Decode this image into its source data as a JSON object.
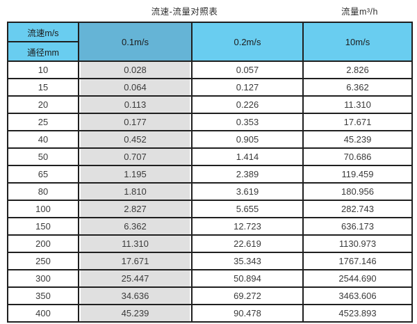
{
  "titles": {
    "table_title": "流速-流量对照表",
    "unit_label": "流量m³/h"
  },
  "table": {
    "corner_top": "流速m/s",
    "corner_bottom": "通径mm",
    "column_headers": [
      "0.1m/s",
      "0.2m/s",
      "10m/s"
    ],
    "rows": [
      {
        "diameter": "10",
        "values": [
          "0.028",
          "0.057",
          "2.826"
        ]
      },
      {
        "diameter": "15",
        "values": [
          "0.064",
          "0.127",
          "6.362"
        ]
      },
      {
        "diameter": "20",
        "values": [
          "0.113",
          "0.226",
          "11.310"
        ]
      },
      {
        "diameter": "25",
        "values": [
          "0.177",
          "0.353",
          "17.671"
        ]
      },
      {
        "diameter": "40",
        "values": [
          "0.452",
          "0.905",
          "45.239"
        ]
      },
      {
        "diameter": "50",
        "values": [
          "0.707",
          "1.414",
          "70.686"
        ]
      },
      {
        "diameter": "65",
        "values": [
          "1.195",
          "2.389",
          "119.459"
        ]
      },
      {
        "diameter": "80",
        "values": [
          "1.810",
          "3.619",
          "180.956"
        ]
      },
      {
        "diameter": "100",
        "values": [
          "2.827",
          "5.655",
          "282.743"
        ]
      },
      {
        "diameter": "150",
        "values": [
          "6.362",
          "12.723",
          "636.173"
        ]
      },
      {
        "diameter": "200",
        "values": [
          "11.310",
          "22.619",
          "1130.973"
        ]
      },
      {
        "diameter": "250",
        "values": [
          "17.671",
          "35.343",
          "1767.146"
        ]
      },
      {
        "diameter": "300",
        "values": [
          "25.447",
          "50.894",
          "2544.690"
        ]
      },
      {
        "diameter": "350",
        "values": [
          "34.636",
          "69.272",
          "3463.606"
        ]
      },
      {
        "diameter": "400",
        "values": [
          "45.239",
          "90.478",
          "4523.893"
        ]
      }
    ]
  },
  "colors": {
    "header_blue": "#69cdf0",
    "header_blue_dark": "#65b4d6",
    "col_gray": "#e0e0e0",
    "border": "#1f1f1f"
  }
}
